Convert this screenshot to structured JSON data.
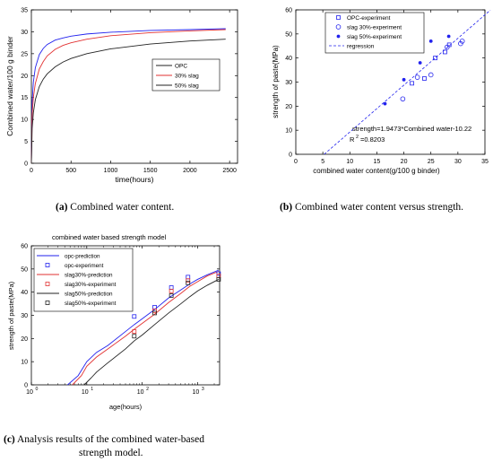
{
  "captions": {
    "a_label": "(a)",
    "a_text": " Combined water content.",
    "b_label": "(b)",
    "b_text": " Combined water content versus strength.",
    "c_label": "(c)",
    "c_line1": " Analysis results of the combined water-based",
    "c_line2": "strength model."
  },
  "chart_data": [
    {
      "id": "a",
      "type": "line",
      "title": "",
      "xlabel": "time(hours)",
      "ylabel": "Combined water/100 g binder",
      "xlim": [
        0,
        2600
      ],
      "ylim": [
        0,
        35
      ],
      "xticks": [
        0,
        500,
        1000,
        1500,
        2000,
        2500
      ],
      "yticks": [
        0,
        5,
        10,
        15,
        20,
        25,
        30,
        35
      ],
      "grid": false,
      "legend_position": "center-right",
      "series": [
        {
          "name": "OPC",
          "color": "#2222ee",
          "x": [
            0,
            10,
            25,
            50,
            100,
            150,
            200,
            300,
            400,
            500,
            700,
            1000,
            1500,
            2000,
            2450
          ],
          "y": [
            0,
            14,
            18.5,
            21.8,
            24.8,
            26.2,
            27.1,
            28.1,
            28.6,
            29,
            29.5,
            29.9,
            30.3,
            30.5,
            30.7
          ]
        },
        {
          "name": "30% slag",
          "color": "#e23232",
          "x": [
            0,
            10,
            25,
            50,
            100,
            150,
            200,
            300,
            400,
            500,
            700,
            1000,
            1500,
            2000,
            2450
          ],
          "y": [
            0,
            11,
            15,
            18.2,
            21.5,
            23.2,
            24.5,
            26,
            26.9,
            27.5,
            28.3,
            29.1,
            29.8,
            30.2,
            30.5
          ]
        },
        {
          "name": "50% slag",
          "color": "#222222",
          "x": [
            0,
            10,
            25,
            50,
            100,
            150,
            200,
            300,
            400,
            500,
            700,
            1000,
            1500,
            2000,
            2450
          ],
          "y": [
            0,
            8,
            11.5,
            14.5,
            17.5,
            19.2,
            20.4,
            22,
            23.1,
            23.9,
            25,
            26.1,
            27.2,
            27.9,
            28.3
          ]
        }
      ],
      "legend": [
        "OPC",
        "30% slag",
        "50% slag"
      ]
    },
    {
      "id": "b",
      "type": "scatter",
      "title": "",
      "xlabel": "combined water content(g/100 g binder)",
      "ylabel": "strength of paste(MPa)",
      "xlim": [
        0,
        35
      ],
      "ylim": [
        0,
        60
      ],
      "xticks": [
        0,
        5,
        10,
        15,
        20,
        25,
        30,
        35
      ],
      "yticks": [
        0,
        10,
        20,
        30,
        40,
        50,
        60
      ],
      "grid": false,
      "legend_position": "top",
      "series": [
        {
          "name": "OPC-experiment",
          "marker": "square",
          "color": "#2222ee",
          "x": [
            21.5,
            23.8,
            25.8,
            27.6,
            28.4
          ],
          "y": [
            29.5,
            31.5,
            40,
            42.5,
            45.5
          ]
        },
        {
          "name": "slag 30%-experiment",
          "marker": "circle",
          "color": "#2222ee",
          "x": [
            19.8,
            22.5,
            25,
            28,
            30.5,
            30.8
          ],
          "y": [
            23,
            32,
            33,
            44.5,
            46,
            47
          ]
        },
        {
          "name": "slag 50%-experiment",
          "marker": "star",
          "color": "#2222ee",
          "x": [
            16.5,
            20,
            23,
            25,
            28.3
          ],
          "y": [
            21,
            31,
            38,
            47,
            49
          ]
        }
      ],
      "regression": {
        "name": "regression",
        "slope": 1.9473,
        "intercept": -10.22,
        "x_range": [
          5.25,
          36
        ],
        "color": "#2222ee"
      },
      "legend": [
        "OPC-experiment",
        "slag 30%-experiment",
        "slag 50%-experiment",
        "regression"
      ],
      "annotations": [
        "strength=1.9473*Combined water-10.22",
        "R",
        "2",
        "=0.8203"
      ]
    },
    {
      "id": "c",
      "type": "line",
      "title": "combined water based strength model",
      "xlabel": "age(hours)",
      "ylabel": "strength of paste(MPa)",
      "xscale": "log",
      "xlim": [
        1,
        2500
      ],
      "ylim": [
        0,
        60
      ],
      "xticks": [
        1,
        10,
        100,
        1000
      ],
      "xtick_labels": [
        "10",
        "10",
        "10",
        "10"
      ],
      "xtick_exponents": [
        "0",
        "1",
        "2",
        "3"
      ],
      "yticks": [
        0,
        10,
        20,
        30,
        40,
        50,
        60
      ],
      "grid": false,
      "legend_position": "top-left",
      "series": [
        {
          "name": "opc-prediction",
          "kind": "line",
          "color": "#2222ee",
          "x": [
            4.5,
            7,
            10,
            15,
            24,
            50,
            72,
            100,
            168,
            300,
            500,
            720,
            1000,
            1500,
            2400
          ],
          "y": [
            0,
            4,
            10,
            14,
            17,
            23,
            26,
            28.5,
            32.5,
            37.5,
            41,
            43.5,
            45.5,
            47.5,
            49.5
          ]
        },
        {
          "name": "opc-experiment",
          "kind": "marker",
          "marker": "square",
          "color": "#2222ee",
          "x": [
            72,
            168,
            336,
            672,
            2400
          ],
          "y": [
            29.5,
            33.5,
            42,
            46.5,
            48
          ]
        },
        {
          "name": "slag30%-prediction",
          "kind": "line",
          "color": "#e23232",
          "x": [
            5.5,
            8,
            10,
            15,
            24,
            50,
            72,
            100,
            168,
            300,
            500,
            720,
            1000,
            1500,
            2400
          ],
          "y": [
            0,
            4,
            8,
            12,
            15.5,
            21,
            24,
            26.5,
            30.5,
            35.5,
            39.5,
            42.5,
            44.5,
            47,
            49
          ]
        },
        {
          "name": "slag30%-experiment",
          "kind": "marker",
          "marker": "square",
          "color": "#e23232",
          "x": [
            72,
            168,
            336,
            672,
            2400
          ],
          "y": [
            23,
            32,
            40.5,
            45,
            47
          ]
        },
        {
          "name": "slag50%-prediction",
          "kind": "line",
          "color": "#222222",
          "x": [
            9,
            12,
            15,
            24,
            50,
            72,
            100,
            168,
            300,
            500,
            720,
            1000,
            1500,
            2400
          ],
          "y": [
            0,
            3,
            5.5,
            9.5,
            15.5,
            19,
            21.5,
            26,
            31,
            35,
            38,
            40.5,
            43,
            45.5
          ]
        },
        {
          "name": "slag50%-experiment",
          "kind": "marker",
          "marker": "square",
          "color": "#222222",
          "x": [
            72,
            168,
            336,
            672,
            2400
          ],
          "y": [
            21,
            31,
            38.5,
            44,
            45.5
          ]
        }
      ],
      "legend": [
        "opc-prediction",
        "opc-experiment",
        "slag30%-prediction",
        "slag30%-experiment",
        "slag50%-prediction",
        "slag50%-experiment"
      ]
    }
  ]
}
